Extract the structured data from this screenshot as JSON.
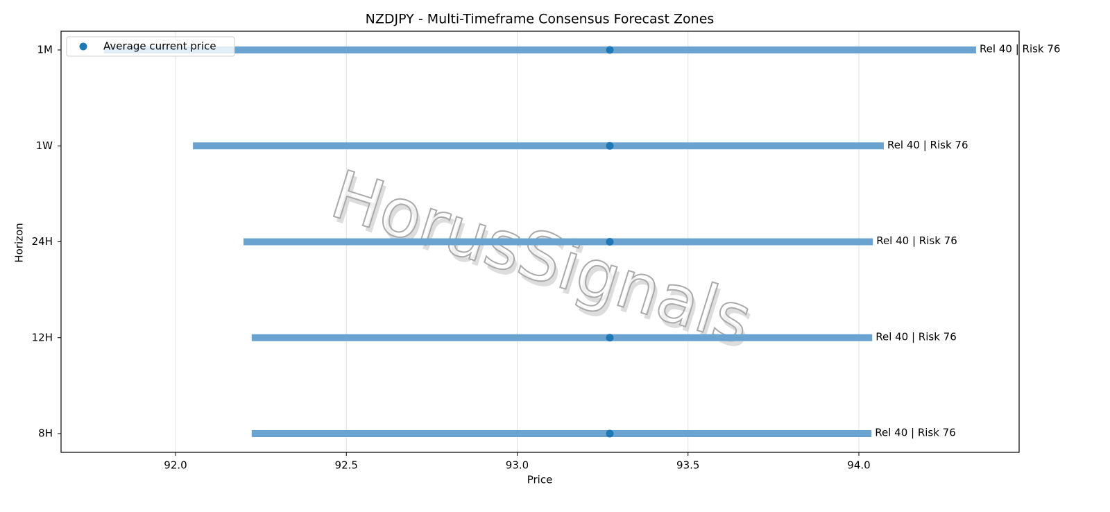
{
  "chart_data": {
    "type": "range",
    "title": "NZDJPY - Multi-Timeframe Consensus Forecast Zones",
    "xlabel": "Price",
    "ylabel": "Horizon",
    "watermark": "HorusSignals",
    "categories": [
      "1M",
      "1W",
      "24H",
      "12H",
      "8H"
    ],
    "low": [
      91.791,
      92.051,
      92.199,
      92.223,
      92.223
    ],
    "high": [
      94.343,
      94.073,
      94.041,
      94.039,
      94.037
    ],
    "range_color": "#6aa3cf",
    "labels": [
      "Rel 40 | Risk 76",
      "Rel 40 | Risk 76",
      "Rel 40 | Risk 76",
      "Rel 40 | Risk 76",
      "Rel 40 | Risk 76"
    ],
    "series": [
      {
        "name": "Average current price",
        "color": "#1f77b4",
        "values": [
          93.271,
          93.271,
          93.271,
          93.271,
          93.271
        ]
      }
    ],
    "xlim": [
      91.665,
      94.469
    ],
    "xticks": [
      {
        "value": 92,
        "label": "92.0"
      },
      92.5,
      {
        "value": 93,
        "label": "93.0"
      },
      93.5,
      {
        "value": 94,
        "label": "94.0"
      }
    ],
    "grid": true,
    "legend": "upper left"
  }
}
